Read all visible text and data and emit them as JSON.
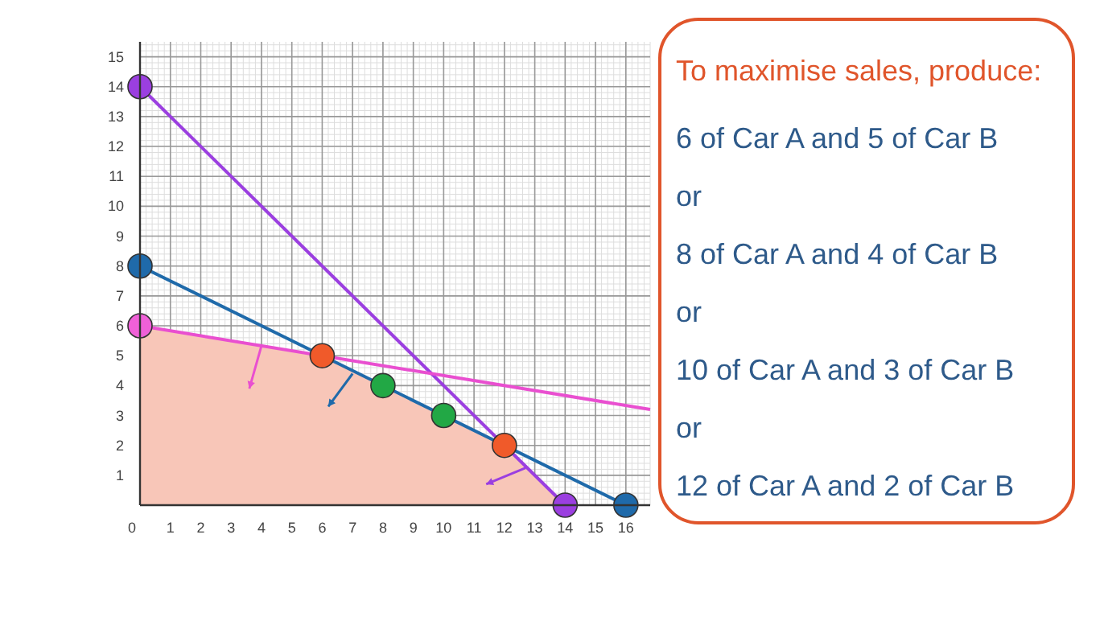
{
  "chart_data": [
    {
      "type": "line",
      "xlim": [
        0,
        16.8
      ],
      "ylim": [
        0,
        15.5
      ],
      "xticks": [
        0,
        1,
        2,
        3,
        4,
        5,
        6,
        7,
        8,
        9,
        10,
        11,
        12,
        13,
        14,
        15,
        16
      ],
      "yticks": [
        1,
        2,
        3,
        4,
        5,
        6,
        7,
        8,
        9,
        10,
        11,
        12,
        13,
        14,
        15
      ],
      "grid": true,
      "series": [
        {
          "type": "area",
          "color": "#f8c6b8",
          "x": [
            0,
            6,
            12,
            14
          ],
          "values": [
            6,
            5,
            2,
            0
          ]
        },
        {
          "type": "line",
          "color": "#9b3fe0",
          "x": [
            0,
            14
          ],
          "values": [
            14,
            0
          ]
        },
        {
          "type": "line",
          "color": "#1f6aaa",
          "x": [
            0,
            16
          ],
          "values": [
            8,
            0
          ]
        },
        {
          "type": "line",
          "color": "#e94fd0",
          "x": [
            0,
            16.8
          ],
          "values": [
            6,
            3.2
          ]
        },
        {
          "type": "scatter",
          "color": "#9b3fe0",
          "x": [
            0,
            14
          ],
          "values": [
            14,
            0
          ]
        },
        {
          "type": "scatter",
          "color": "#1f6aaa",
          "x": [
            0,
            16
          ],
          "values": [
            8,
            0
          ]
        },
        {
          "type": "scatter",
          "color": "#f060d8",
          "x": [
            0
          ],
          "values": [
            6
          ]
        },
        {
          "type": "scatter",
          "color": "#f05a2a",
          "x": [
            6,
            12
          ],
          "values": [
            5,
            2
          ]
        },
        {
          "type": "scatter",
          "color": "#22a845",
          "x": [
            8,
            10
          ],
          "values": [
            4,
            3
          ]
        }
      ]
    },
    {
      "type": "other",
      "title": "To maximise sales, produce:",
      "annotations": [
        "6 of Car A and 5 of Car B",
        "or",
        "8 of Car A and 4 of Car B",
        "or",
        "10 of Car A and 3 of Car B",
        "or",
        "12 of Car A and 2 of Car B"
      ]
    }
  ]
}
